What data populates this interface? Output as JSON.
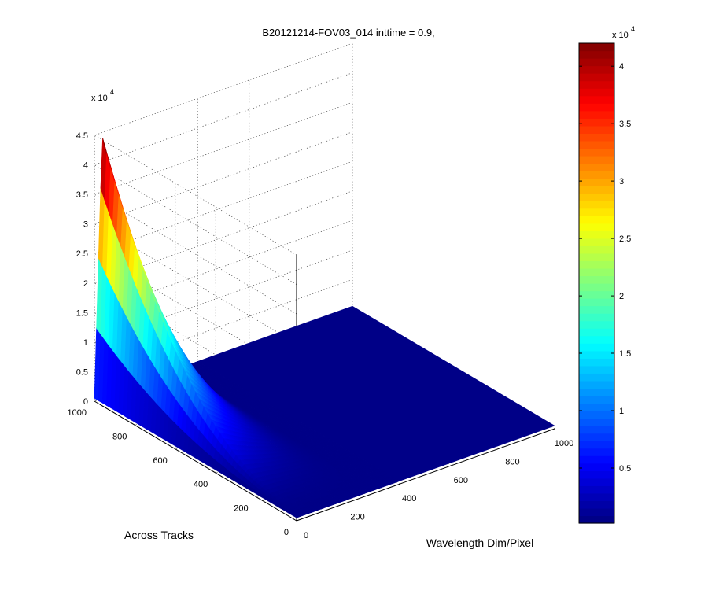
{
  "chart_data": {
    "type": "surface",
    "title": "B20121214-FOV03_014 inttime = 0.9,",
    "xlabel": "Wavelength Dim/Pixel",
    "ylabel": "Across Tracks",
    "zlabel": "",
    "xlim": [
      0,
      1000
    ],
    "ylim": [
      0,
      1000
    ],
    "zlim": [
      0,
      45000
    ],
    "x_ticks": [
      "0",
      "200",
      "400",
      "600",
      "800",
      "1000"
    ],
    "y_ticks": [
      "0",
      "200",
      "400",
      "600",
      "800",
      "1000"
    ],
    "z_ticks": [
      "0",
      "0.5",
      "1",
      "1.5",
      "2",
      "2.5",
      "3",
      "3.5",
      "4",
      "4.5"
    ],
    "z_multiplier": {
      "base": "x 10",
      "exponent": "4"
    },
    "grid": true,
    "colormap": "jet",
    "peak": {
      "x_start": 0,
      "x_peak": 30,
      "x_end": 320,
      "y_max": 1000,
      "z_max": 44500,
      "z_floor": 500
    },
    "colorbar": {
      "clim": [
        200,
        42000
      ],
      "ticks": [
        "0.5",
        "1",
        "1.5",
        "2",
        "2.5",
        "3",
        "3.5",
        "4"
      ],
      "multiplier": {
        "base": "x 10",
        "exponent": "4"
      }
    }
  }
}
